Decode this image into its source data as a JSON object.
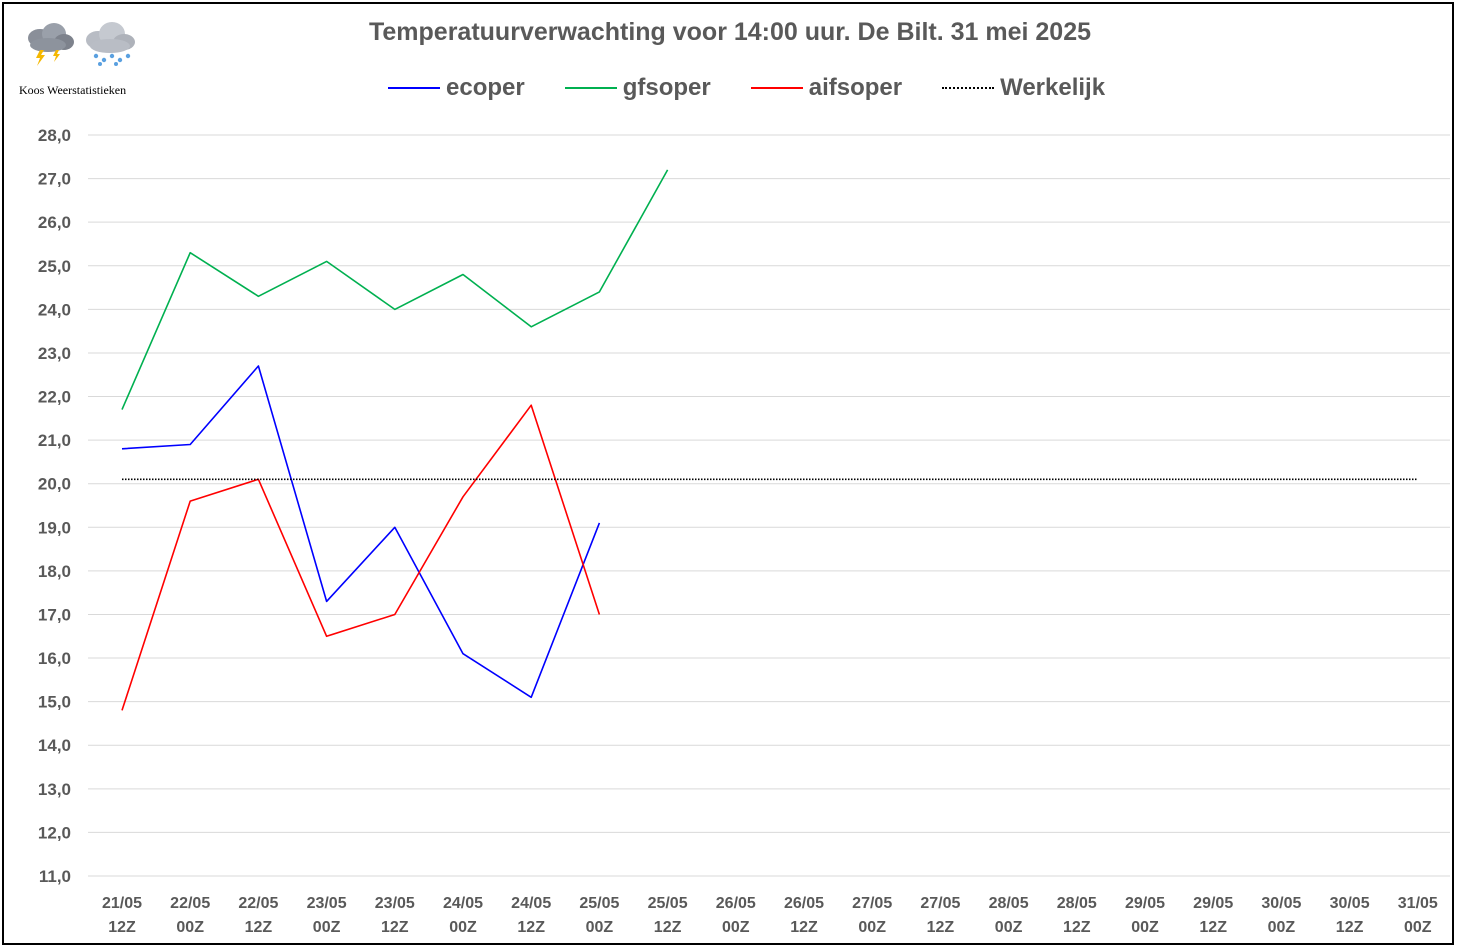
{
  "branding": {
    "caption": "Koos Weerstatistieken",
    "icons": [
      "thunderstorm-cloud-icon",
      "snow-cloud-icon"
    ]
  },
  "chart_data": {
    "type": "line",
    "title": "Temperatuurverwachting voor 14:00 uur. De Bilt. 31 mei 2025",
    "xlabel": "",
    "ylabel": "",
    "categories": [
      "21/05 12Z",
      "22/05 00Z",
      "22/05 12Z",
      "23/05 00Z",
      "23/05 12Z",
      "24/05 00Z",
      "24/05 12Z",
      "25/05 00Z",
      "25/05 12Z",
      "26/05 00Z",
      "26/05 12Z",
      "27/05 00Z",
      "27/05 12Z",
      "28/05 00Z",
      "28/05 12Z",
      "29/05 00Z",
      "29/05 12Z",
      "30/05 00Z",
      "30/05 12Z",
      "31/05 00Z"
    ],
    "ylim": [
      11.0,
      28.0
    ],
    "ytick_step": 1.0,
    "yticks": [
      "28,0",
      "27,0",
      "26,0",
      "25,0",
      "24,0",
      "23,0",
      "22,0",
      "21,0",
      "20,0",
      "19,0",
      "18,0",
      "17,0",
      "16,0",
      "15,0",
      "14,0",
      "13,0",
      "12,0",
      "11,0"
    ],
    "grid": true,
    "legend_position": "top",
    "series": [
      {
        "name": "ecoper",
        "color": "#0000FF",
        "style": "solid",
        "values": [
          20.8,
          20.9,
          22.7,
          17.3,
          19.0,
          16.1,
          15.1,
          19.1,
          null,
          null,
          null,
          null,
          null,
          null,
          null,
          null,
          null,
          null,
          null,
          null
        ]
      },
      {
        "name": "gfsoper",
        "color": "#00B050",
        "style": "solid",
        "values": [
          21.7,
          25.3,
          24.3,
          25.1,
          24.0,
          24.8,
          23.6,
          24.4,
          27.2,
          null,
          null,
          null,
          null,
          null,
          null,
          null,
          null,
          null,
          null,
          null
        ]
      },
      {
        "name": "aifsoper",
        "color": "#FF0000",
        "style": "solid",
        "values": [
          14.8,
          19.6,
          20.1,
          16.5,
          17.0,
          19.7,
          21.8,
          17.0,
          null,
          null,
          null,
          null,
          null,
          null,
          null,
          null,
          null,
          null,
          null,
          null
        ]
      },
      {
        "name": "Werkelijk",
        "color": "#000000",
        "style": "dotted",
        "values": [
          20.1,
          20.1,
          20.1,
          20.1,
          20.1,
          20.1,
          20.1,
          20.1,
          20.1,
          20.1,
          20.1,
          20.1,
          20.1,
          20.1,
          20.1,
          20.1,
          20.1,
          20.1,
          20.1,
          20.1
        ]
      }
    ]
  }
}
